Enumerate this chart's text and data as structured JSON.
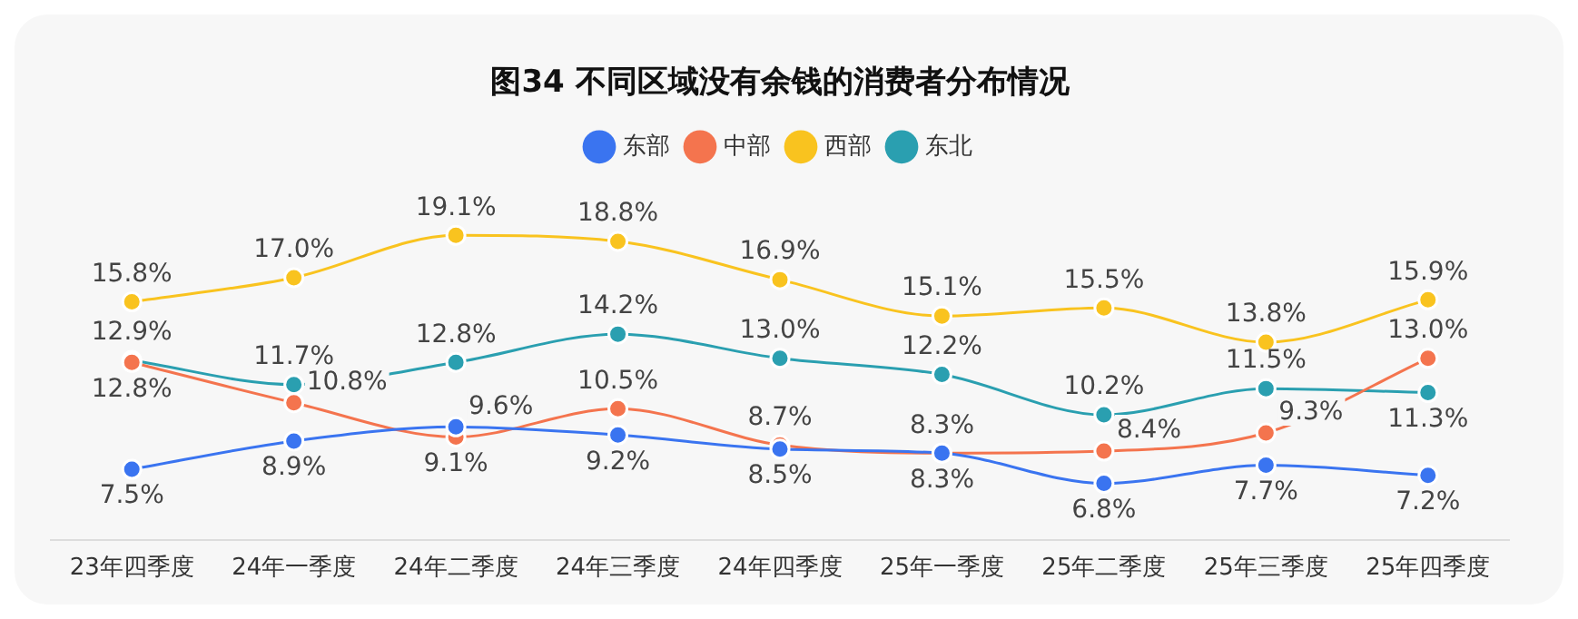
{
  "chart_data": {
    "type": "line",
    "title": "图34 不同区域没有余钱的消费者分布情况",
    "categories": [
      "23年四季度",
      "24年一季度",
      "24年二季度",
      "24年三季度",
      "24年四季度",
      "25年一季度",
      "25年二季度",
      "25年三季度",
      "25年四季度"
    ],
    "series": [
      {
        "name": "东部",
        "color": "#3a74f0",
        "values": [
          7.5,
          8.9,
          9.6,
          9.2,
          8.5,
          8.3,
          6.8,
          7.7,
          7.2
        ],
        "value_labels": [
          "7.5%",
          "8.9%",
          "9.6%",
          "9.2%",
          "8.5%",
          "8.3%",
          "6.8%",
          "7.7%",
          "7.2%"
        ]
      },
      {
        "name": "中部",
        "color": "#f4744e",
        "values": [
          12.8,
          10.8,
          9.1,
          10.5,
          8.7,
          8.3,
          8.4,
          9.3,
          13.0
        ],
        "value_labels": [
          "12.8%",
          "10.8%",
          "9.1%",
          "10.5%",
          "8.7%",
          "8.3%",
          "8.4%",
          "9.3%",
          "13.0%"
        ]
      },
      {
        "name": "西部",
        "color": "#f9c31f",
        "values": [
          15.8,
          17.0,
          19.1,
          18.8,
          16.9,
          15.1,
          15.5,
          13.8,
          15.9
        ],
        "value_labels": [
          "15.8%",
          "17.0%",
          "19.1%",
          "18.8%",
          "16.9%",
          "15.1%",
          "15.5%",
          "13.8%",
          "15.9%"
        ]
      },
      {
        "name": "东北",
        "color": "#2a9fb0",
        "values": [
          12.9,
          11.7,
          12.8,
          14.2,
          13.0,
          12.2,
          10.2,
          11.5,
          11.3
        ],
        "value_labels": [
          "12.9%",
          "11.7%",
          "12.8%",
          "14.2%",
          "13.0%",
          "12.2%",
          "10.2%",
          "11.5%",
          "11.3%"
        ]
      }
    ],
    "legend": "top",
    "marker": "circle",
    "line_style": "solid"
  }
}
